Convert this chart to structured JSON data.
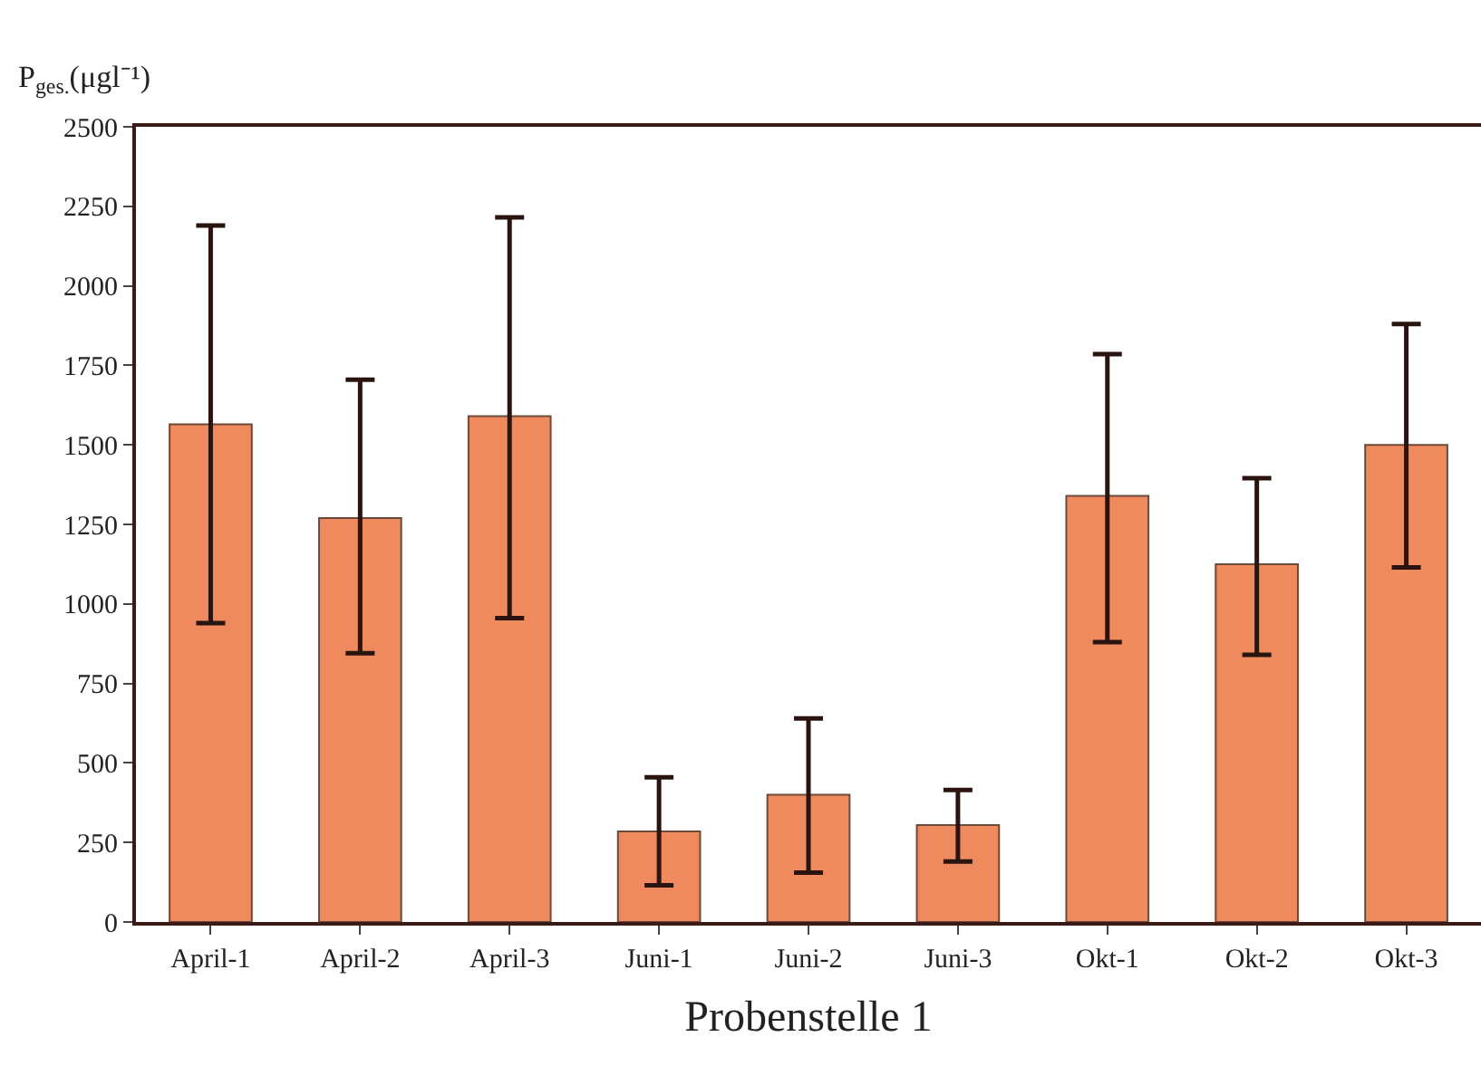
{
  "chart_data": {
    "type": "bar",
    "ylabel": "P$_{ges.}$(μgl⁻¹)",
    "xlabel": "Probenstelle 1",
    "categories": [
      "April-1",
      "April-2",
      "April-3",
      "Juni-1",
      "Juni-2",
      "Juni-3",
      "Okt-1",
      "Okt-2",
      "Okt-3"
    ],
    "values": [
      1565,
      1270,
      1590,
      285,
      400,
      305,
      1340,
      1125,
      1500
    ],
    "errors": [
      [
        940,
        2190
      ],
      [
        845,
        1705
      ],
      [
        955,
        2215
      ],
      [
        115,
        455
      ],
      [
        155,
        640
      ],
      [
        190,
        415
      ],
      [
        880,
        1785
      ],
      [
        840,
        1395
      ],
      [
        1115,
        1880
      ]
    ],
    "color": "#ef8a5e",
    "ylim": [
      0,
      2500
    ],
    "yticks": [
      0,
      250,
      500,
      750,
      1000,
      1250,
      1500,
      1750,
      2000,
      2250,
      2500
    ]
  }
}
